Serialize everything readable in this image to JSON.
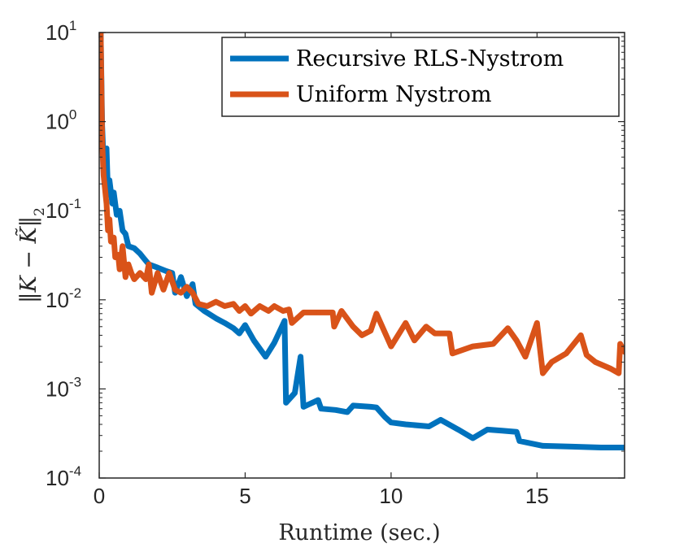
{
  "chart_data": {
    "type": "line",
    "xlabel": "Runtime (sec.)",
    "ylabel_parts": [
      "‖K − ",
      "K̃",
      "‖",
      "2"
    ],
    "x_ticks": [
      0,
      5,
      10,
      15
    ],
    "x_tick_labels": [
      "0",
      "5",
      "10",
      "15"
    ],
    "xlim": [
      0,
      18
    ],
    "y_scale": "log",
    "ylim": [
      0.0001,
      10
    ],
    "y_ticks": [
      {
        "value": 10,
        "base": "10",
        "exp": "1"
      },
      {
        "value": 1,
        "base": "10",
        "exp": "0"
      },
      {
        "value": 0.1,
        "base": "10",
        "exp": "-1"
      },
      {
        "value": 0.01,
        "base": "10",
        "exp": "-2"
      },
      {
        "value": 0.001,
        "base": "10",
        "exp": "-3"
      },
      {
        "value": 0.0001,
        "base": "10",
        "exp": "-4"
      }
    ],
    "legend_position": "top-right",
    "series": [
      {
        "name": "Recursive RLS-Nystrom",
        "color": "#0072BD",
        "points": [
          [
            0.05,
            10
          ],
          [
            0.1,
            0.9
          ],
          [
            0.15,
            0.35
          ],
          [
            0.25,
            0.5
          ],
          [
            0.3,
            0.15
          ],
          [
            0.35,
            0.22
          ],
          [
            0.45,
            0.12
          ],
          [
            0.5,
            0.16
          ],
          [
            0.6,
            0.09
          ],
          [
            0.7,
            0.1
          ],
          [
            0.8,
            0.06
          ],
          [
            0.9,
            0.055
          ],
          [
            1.0,
            0.04
          ],
          [
            1.2,
            0.038
          ],
          [
            1.4,
            0.033
          ],
          [
            1.5,
            0.03
          ],
          [
            1.7,
            0.025
          ],
          [
            2.0,
            0.023
          ],
          [
            2.3,
            0.021
          ],
          [
            2.5,
            0.02
          ],
          [
            2.6,
            0.012
          ],
          [
            2.8,
            0.018
          ],
          [
            3.0,
            0.011
          ],
          [
            3.2,
            0.015
          ],
          [
            3.3,
            0.009
          ],
          [
            3.6,
            0.0075
          ],
          [
            4.0,
            0.0062
          ],
          [
            4.3,
            0.0055
          ],
          [
            4.6,
            0.0048
          ],
          [
            4.8,
            0.0042
          ],
          [
            5.0,
            0.0052
          ],
          [
            5.3,
            0.0035
          ],
          [
            5.7,
            0.0023
          ],
          [
            6.0,
            0.0033
          ],
          [
            6.35,
            0.0058
          ],
          [
            6.4,
            0.0007
          ],
          [
            6.7,
            0.0009
          ],
          [
            6.9,
            0.0023
          ],
          [
            7.0,
            0.00063
          ],
          [
            7.3,
            0.0007
          ],
          [
            7.5,
            0.00075
          ],
          [
            7.6,
            0.0006
          ],
          [
            8.1,
            0.00058
          ],
          [
            8.5,
            0.00055
          ],
          [
            8.7,
            0.00065
          ],
          [
            9.3,
            0.00063
          ],
          [
            9.5,
            0.00062
          ],
          [
            9.8,
            0.00048
          ],
          [
            10.0,
            0.00042
          ],
          [
            10.5,
            0.0004
          ],
          [
            11.3,
            0.00038
          ],
          [
            11.7,
            0.00045
          ],
          [
            12.3,
            0.00035
          ],
          [
            12.8,
            0.00028
          ],
          [
            13.3,
            0.00035
          ],
          [
            13.8,
            0.00034
          ],
          [
            14.3,
            0.00033
          ],
          [
            14.4,
            0.00026
          ],
          [
            15.2,
            0.00023
          ],
          [
            16.2,
            0.000225
          ],
          [
            17.2,
            0.00022
          ],
          [
            18,
            0.00022
          ]
        ]
      },
      {
        "name": "Uniform Nystrom",
        "color": "#D95319",
        "points": [
          [
            0.05,
            10
          ],
          [
            0.1,
            0.6
          ],
          [
            0.15,
            0.25
          ],
          [
            0.25,
            0.12
          ],
          [
            0.3,
            0.06
          ],
          [
            0.35,
            0.08
          ],
          [
            0.4,
            0.045
          ],
          [
            0.5,
            0.05
          ],
          [
            0.55,
            0.03
          ],
          [
            0.65,
            0.032
          ],
          [
            0.7,
            0.022
          ],
          [
            0.8,
            0.04
          ],
          [
            0.9,
            0.018
          ],
          [
            1.0,
            0.025
          ],
          [
            1.1,
            0.02
          ],
          [
            1.2,
            0.017
          ],
          [
            1.4,
            0.02
          ],
          [
            1.6,
            0.017
          ],
          [
            1.7,
            0.025
          ],
          [
            1.8,
            0.012
          ],
          [
            2.0,
            0.02
          ],
          [
            2.2,
            0.013
          ],
          [
            2.4,
            0.02
          ],
          [
            2.6,
            0.013
          ],
          [
            2.8,
            0.012
          ],
          [
            3.0,
            0.014
          ],
          [
            3.2,
            0.012
          ],
          [
            3.4,
            0.009
          ],
          [
            3.7,
            0.0085
          ],
          [
            4.0,
            0.0095
          ],
          [
            4.3,
            0.0085
          ],
          [
            4.6,
            0.009
          ],
          [
            4.8,
            0.0075
          ],
          [
            5.0,
            0.0085
          ],
          [
            5.2,
            0.007
          ],
          [
            5.5,
            0.0085
          ],
          [
            5.8,
            0.0075
          ],
          [
            6.0,
            0.0085
          ],
          [
            6.3,
            0.0075
          ],
          [
            6.5,
            0.0078
          ],
          [
            6.6,
            0.0055
          ],
          [
            7.0,
            0.0072
          ],
          [
            7.5,
            0.0072
          ],
          [
            8.0,
            0.0072
          ],
          [
            8.05,
            0.005
          ],
          [
            8.3,
            0.0075
          ],
          [
            8.7,
            0.005
          ],
          [
            9.0,
            0.004
          ],
          [
            9.3,
            0.0045
          ],
          [
            9.5,
            0.007
          ],
          [
            10.0,
            0.003
          ],
          [
            10.5,
            0.0055
          ],
          [
            10.8,
            0.0035
          ],
          [
            11.2,
            0.005
          ],
          [
            11.5,
            0.0042
          ],
          [
            12.0,
            0.0042
          ],
          [
            12.1,
            0.0025
          ],
          [
            12.8,
            0.003
          ],
          [
            13.5,
            0.0032
          ],
          [
            14.0,
            0.0048
          ],
          [
            14.3,
            0.0035
          ],
          [
            14.6,
            0.0023
          ],
          [
            15.0,
            0.0055
          ],
          [
            15.2,
            0.0015
          ],
          [
            15.5,
            0.002
          ],
          [
            16.0,
            0.0025
          ],
          [
            16.5,
            0.004
          ],
          [
            16.7,
            0.0024
          ],
          [
            17.0,
            0.002
          ],
          [
            17.5,
            0.0017
          ],
          [
            17.8,
            0.0015
          ],
          [
            17.85,
            0.0032
          ],
          [
            18,
            0.0026
          ]
        ]
      }
    ]
  }
}
